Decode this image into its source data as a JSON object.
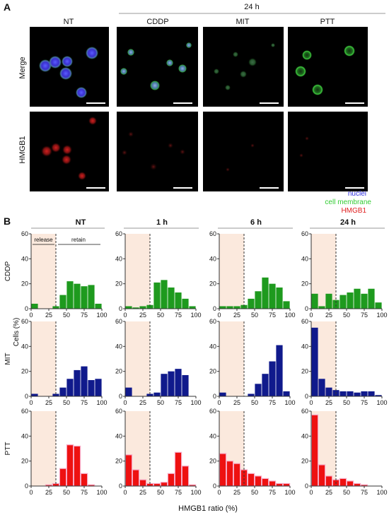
{
  "panel_a": {
    "letter": "A",
    "group_label": "24 h",
    "columns": [
      "NT",
      "CDDP",
      "MIT",
      "PTT"
    ],
    "rows": [
      "Merge",
      "HMGB1"
    ],
    "legend": [
      {
        "label": "nuclei",
        "color": "#2a2adf"
      },
      {
        "label": "cell membrane",
        "color": "#33cc33"
      },
      {
        "label": "HMGB1",
        "color": "#e02020"
      }
    ]
  },
  "panel_b": {
    "letter": "B",
    "region_labels": {
      "release": "release",
      "retain": "retain"
    },
    "threshold": 35
  },
  "chart_data": {
    "type": "bar",
    "column_titles": [
      "NT",
      "1 h",
      "6 h",
      "24 h"
    ],
    "row_titles": [
      "CDDP",
      "MIT",
      "PTT"
    ],
    "ylabel": "Cells (%)",
    "xlabel": "HMGB1 ratio (%)",
    "x_ticks": [
      "0",
      "25",
      "50",
      "75",
      "100"
    ],
    "y_ticks": [
      "0",
      "20",
      "40",
      "60"
    ],
    "xlim": [
      0,
      100
    ],
    "ylim": [
      0,
      60
    ],
    "bin_width": 10,
    "bin_centers": [
      5,
      15,
      25,
      35,
      45,
      55,
      65,
      75,
      85,
      95
    ],
    "row_colors": {
      "CDDP": "#1e9a1e",
      "MIT": "#101a8c",
      "PTT": "#ee1111"
    },
    "panels": [
      {
        "row": "CDDP",
        "column": "NT",
        "values": [
          4,
          0,
          0,
          2,
          11,
          22,
          20,
          18,
          19,
          4
        ]
      },
      {
        "row": "CDDP",
        "column": "1 h",
        "values": [
          2,
          1,
          2,
          3,
          21,
          23,
          17,
          13,
          8,
          2
        ]
      },
      {
        "row": "CDDP",
        "column": "6 h",
        "values": [
          2,
          2,
          2,
          3,
          8,
          14,
          25,
          20,
          17,
          6
        ]
      },
      {
        "row": "CDDP",
        "column": "24 h",
        "values": [
          12,
          2,
          12,
          7,
          11,
          13,
          16,
          12,
          16,
          5
        ]
      },
      {
        "row": "MIT",
        "column": "NT",
        "values": [
          2,
          0,
          0,
          2,
          7,
          14,
          21,
          24,
          13,
          14
        ]
      },
      {
        "row": "MIT",
        "column": "1 h",
        "values": [
          7,
          0,
          0,
          2,
          3,
          18,
          20,
          22,
          17,
          0
        ]
      },
      {
        "row": "MIT",
        "column": "6 h",
        "values": [
          3,
          0,
          0,
          0,
          2,
          10,
          18,
          28,
          41,
          4
        ]
      },
      {
        "row": "MIT",
        "column": "24 h",
        "values": [
          55,
          14,
          7,
          5,
          4,
          4,
          3,
          4,
          4,
          1
        ]
      },
      {
        "row": "PTT",
        "column": "NT",
        "values": [
          0,
          0,
          1,
          2,
          14,
          33,
          32,
          10,
          1,
          0
        ]
      },
      {
        "row": "PTT",
        "column": "1 h",
        "values": [
          25,
          13,
          5,
          2,
          2,
          3,
          10,
          27,
          16,
          1
        ]
      },
      {
        "row": "PTT",
        "column": "6 h",
        "values": [
          26,
          20,
          18,
          13,
          10,
          8,
          6,
          4,
          2,
          2
        ]
      },
      {
        "row": "PTT",
        "column": "24 h",
        "values": [
          57,
          17,
          8,
          5,
          6,
          4,
          2,
          1,
          0,
          0
        ]
      }
    ]
  }
}
